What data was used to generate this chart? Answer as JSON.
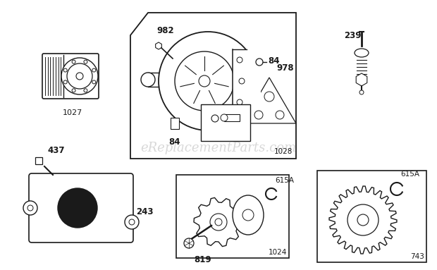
{
  "background_color": "#ffffff",
  "watermark": "eReplacementParts.com",
  "watermark_color": "#c8c8c8",
  "watermark_fontsize": 13,
  "line_color": "#1a1a1a",
  "fig_width": 6.2,
  "fig_height": 3.83,
  "dpi": 100
}
